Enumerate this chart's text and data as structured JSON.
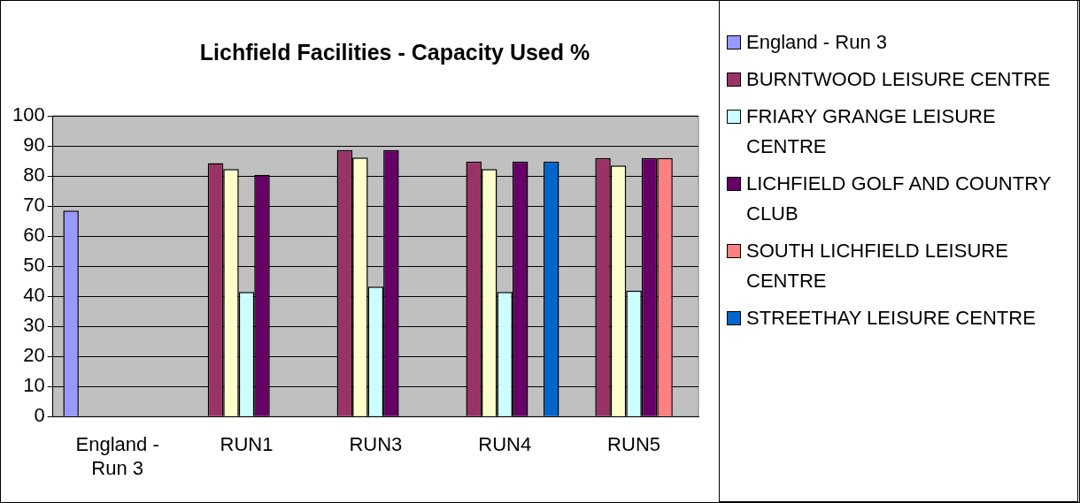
{
  "chart_data": {
    "type": "bar",
    "title": "Lichfield Facilities - Capacity Used %",
    "categories": [
      "England - Run 3",
      "RUN1",
      "RUN3",
      "RUN4",
      "RUN5"
    ],
    "series": [
      {
        "name": "England - Run 3",
        "color": "#9999ff",
        "values": [
          68.5,
          null,
          null,
          null,
          null
        ]
      },
      {
        "name": "BURNTWOOD LEISURE CENTRE",
        "color": "#993366",
        "values": [
          null,
          84.3,
          88.6,
          84.8,
          86
        ]
      },
      {
        "color": "#ffffcc",
        "values": [
          null,
          82.3,
          86.1,
          82.3,
          83.5
        ]
      },
      {
        "name": "FRIARY GRANGE LEISURE CENTRE",
        "color": "#ccffff",
        "values": [
          null,
          41.4,
          43.2,
          41.4,
          41.9
        ]
      },
      {
        "name": "LICHFIELD GOLF AND COUNTRY CLUB",
        "color": "#660066",
        "values": [
          null,
          80.4,
          88.6,
          84.8,
          86
        ]
      },
      {
        "name": "SOUTH LICHFIELD LEISURE CENTRE",
        "color": "#ff8080",
        "values": [
          null,
          null,
          null,
          null,
          86
        ]
      },
      {
        "name": "STREETHAY LEISURE CENTRE",
        "color": "#0066cc",
        "values": [
          null,
          null,
          null,
          84.8,
          null
        ]
      }
    ],
    "ylim": [
      0,
      100
    ],
    "yticks": [
      0,
      10,
      20,
      30,
      40,
      50,
      60,
      70,
      80,
      90,
      100
    ],
    "grid": "y",
    "legend": "right"
  }
}
